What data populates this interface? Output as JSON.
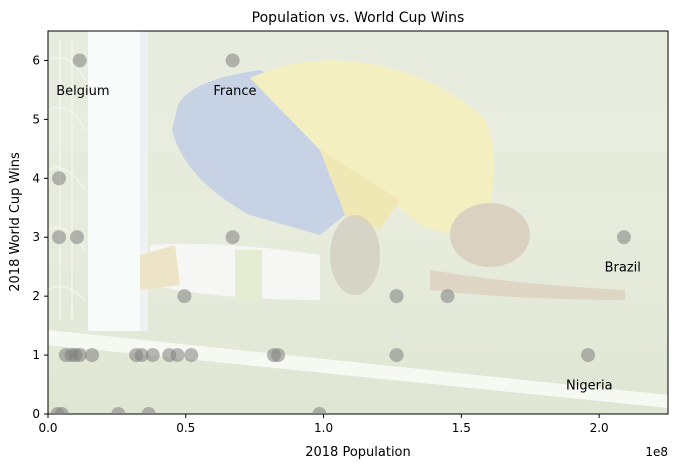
{
  "chart_data": {
    "type": "scatter",
    "title": "Population vs. World Cup Wins",
    "xlabel": "2018 Population",
    "ylabel": "2018 World Cup Wins",
    "x_offset_label": "1e8",
    "xlim": [
      0,
      2.25
    ],
    "ylim": [
      0,
      6.5
    ],
    "x_unit_multiplier": 100000000,
    "xticks": [
      0.0,
      0.5,
      1.0,
      1.5,
      2.0
    ],
    "xtick_labels": [
      "0.0",
      "0.5",
      "1.0",
      "1.5",
      "2.0"
    ],
    "yticks": [
      0,
      1,
      2,
      3,
      4,
      5,
      6
    ],
    "ytick_labels": [
      "0",
      "1",
      "2",
      "3",
      "4",
      "5",
      "6"
    ],
    "grid": false,
    "background": "photo of a footballer in a yellow jersey and blue shorts kneeling on the pitch beside a goalpost",
    "marker_color": "#808080",
    "points": [
      {
        "x": 0.115,
        "y": 6
      },
      {
        "x": 0.67,
        "y": 6
      },
      {
        "x": 0.04,
        "y": 4
      },
      {
        "x": 0.04,
        "y": 3
      },
      {
        "x": 0.105,
        "y": 3
      },
      {
        "x": 0.67,
        "y": 3
      },
      {
        "x": 2.09,
        "y": 3
      },
      {
        "x": 0.495,
        "y": 2
      },
      {
        "x": 1.265,
        "y": 2
      },
      {
        "x": 1.45,
        "y": 2
      },
      {
        "x": 0.065,
        "y": 1
      },
      {
        "x": 0.085,
        "y": 1
      },
      {
        "x": 0.1,
        "y": 1
      },
      {
        "x": 0.115,
        "y": 1
      },
      {
        "x": 0.16,
        "y": 1
      },
      {
        "x": 0.32,
        "y": 1
      },
      {
        "x": 0.34,
        "y": 1
      },
      {
        "x": 0.38,
        "y": 1
      },
      {
        "x": 0.44,
        "y": 1
      },
      {
        "x": 0.47,
        "y": 1
      },
      {
        "x": 0.52,
        "y": 1
      },
      {
        "x": 0.82,
        "y": 1
      },
      {
        "x": 0.835,
        "y": 1
      },
      {
        "x": 1.265,
        "y": 1
      },
      {
        "x": 1.96,
        "y": 1
      },
      {
        "x": 0.035,
        "y": 0
      },
      {
        "x": 0.05,
        "y": 0
      },
      {
        "x": 0.255,
        "y": 0
      },
      {
        "x": 0.365,
        "y": 0
      },
      {
        "x": 0.985,
        "y": 0
      }
    ],
    "annotations": [
      {
        "text": "Belgium",
        "x": 0.03,
        "y": 5.5
      },
      {
        "text": "France",
        "x": 0.6,
        "y": 5.5
      },
      {
        "text": "Brazil",
        "x": 2.02,
        "y": 2.5
      },
      {
        "text": "Nigeria",
        "x": 1.88,
        "y": 0.5
      }
    ]
  }
}
